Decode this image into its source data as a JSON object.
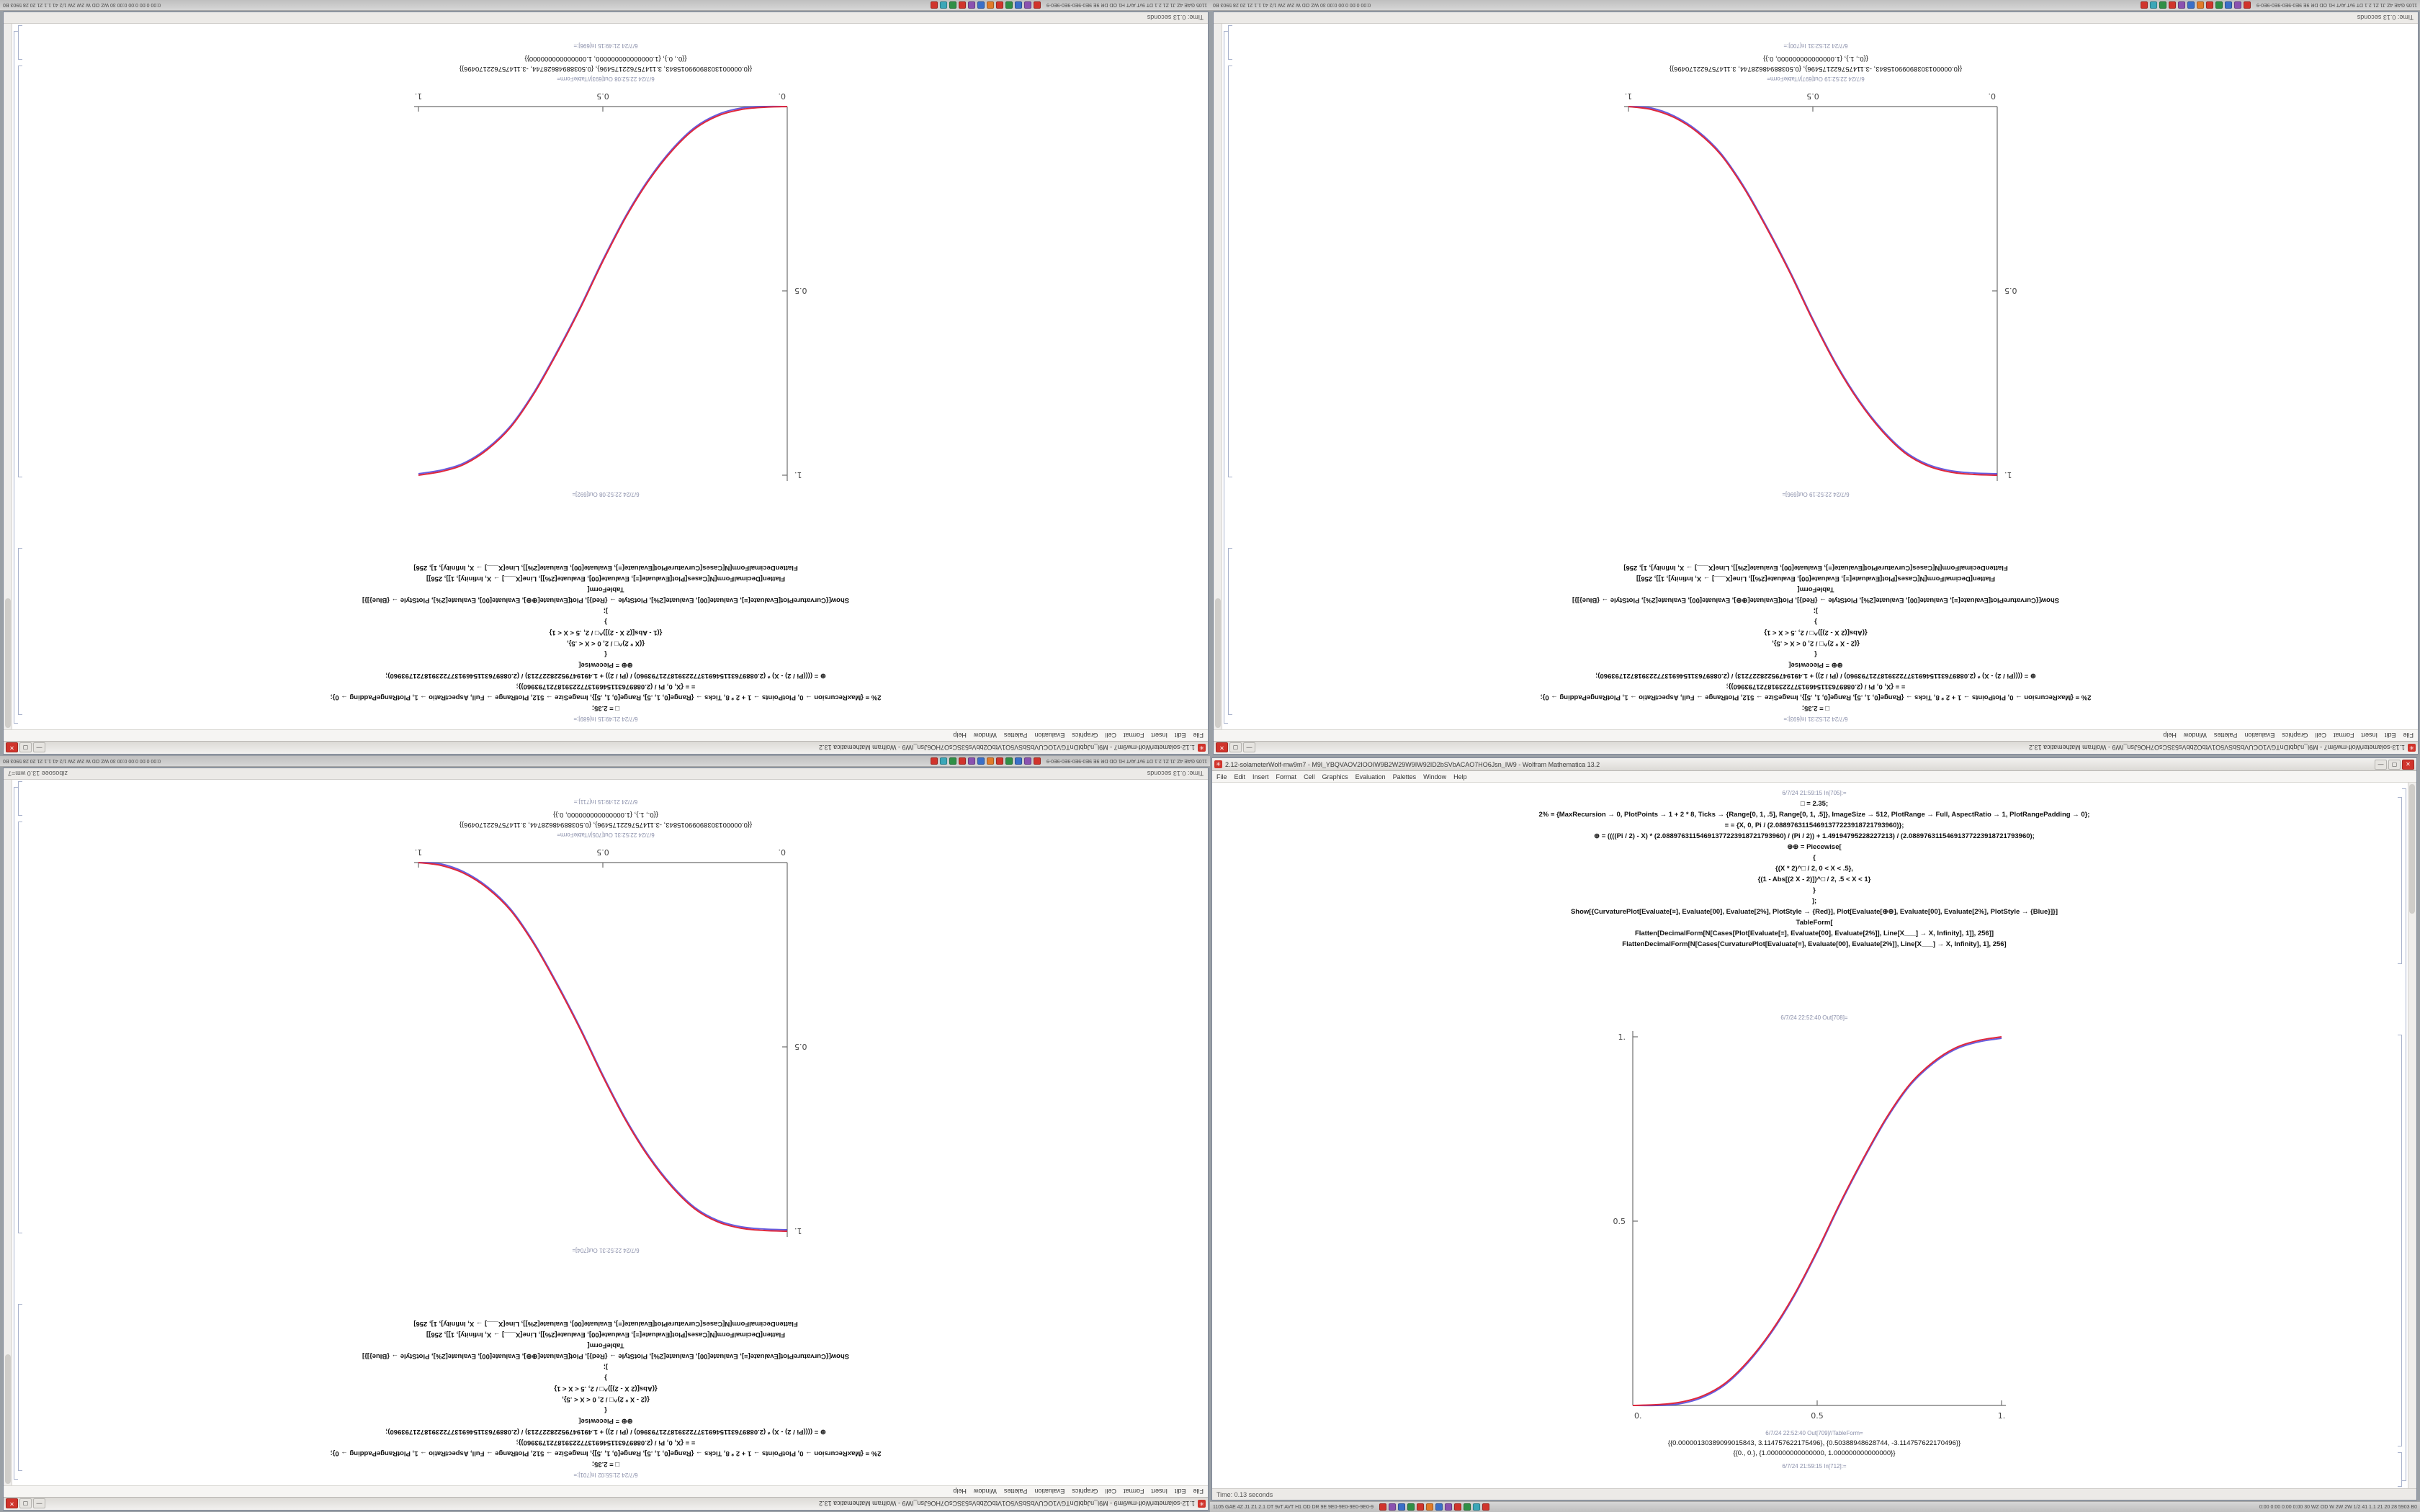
{
  "ui": {
    "menu": [
      "File",
      "Edit",
      "Insert",
      "Format",
      "Cell",
      "Graphics",
      "Evaluation",
      "Palettes",
      "Window",
      "Help"
    ],
    "window_buttons": {
      "minimize": "—",
      "maximize": "▢",
      "close": "✕"
    },
    "app_icon_glyph": "✳",
    "taskbar": {
      "left_text": "1105 GAE 4Z J1 Z1 2.1 DT 9vT AVT H1 OD DR 9E 9E0-9E0-9E0-9E0-9",
      "tray_text": "0:00 0:00 0:00 0:00  30 WZ OD W 2W 2W 1/2 41 1.1 21 20 28 5903 B0",
      "icons": [
        {
          "name": "mathematica-icon",
          "color": "#d0342c"
        },
        {
          "name": "app-icon-purple",
          "color": "#8a52b0"
        },
        {
          "name": "browser-icon",
          "color": "#3a6fc8"
        },
        {
          "name": "files-icon",
          "color": "#2f8f46"
        },
        {
          "name": "mathematica-icon",
          "color": "#d0342c"
        },
        {
          "name": "app-icon-orange",
          "color": "#e07b2a"
        },
        {
          "name": "browser-icon",
          "color": "#3a6fc8"
        },
        {
          "name": "app-icon-purple",
          "color": "#8a52b0"
        },
        {
          "name": "mathematica-icon",
          "color": "#d0342c"
        },
        {
          "name": "files-icon",
          "color": "#2f8f46"
        },
        {
          "name": "app-icon-teal",
          "color": "#3ba7b8"
        },
        {
          "name": "mathematica-icon",
          "color": "#d0342c"
        }
      ]
    },
    "colors": {
      "curve_red": "#e0283c",
      "curve_blue": "#4034d8",
      "close_red": "#d0342c"
    }
  },
  "windows": [
    {
      "rotated": true,
      "title": "1.12-solameterWolf-mw9m7 - M9l_nJqbIDnTGV1OCUVbSbSV5O1VtbO2bbVs53SCsO7HO6Jsn_IW9 - Wolfram Mathematica 13.2",
      "in_label_top": "6/7/24 21:49:15 In[689]:=",
      "code_lines": [
        "□ = 2.35;",
        "2% = {MaxRecursion → 0, PlotPoints → 1 + 2 * 8, Ticks → {Range[0, 1, .5], Range[0, 1, .5]}, ImageSize → 512, PlotRange → Full, AspectRatio → 1, PlotRangePadding → 0};",
        "≡ = {X, 0, Pi / (2.08897631154691377223918721793960)};",
        "⊕ = ((((Pi / 2) - X) * (2.08897631154691377223918721793960) / (Pi / 2)) + 1.49194795228227213) / (2.08897631154691377223918721793960);",
        "⊕⊕ = Piecewise[",
        "{",
        "{(X * 2)^□ / 2, 0 < X < .5},",
        "{(1 - Abs[(2 X - 2)])^□ / 2, .5 < X < 1}",
        "}",
        "];",
        "Show[{CurvaturePlot[Evaluate[≡], Evaluate[00], Evaluate[2%], PlotStyle → {Red}], Plot[Evaluate[⊕⊕], Evaluate[00], Evaluate[2%], PlotStyle → {Blue}]}]",
        "TableForm[",
        "Flatten[DecimalForm[N[Cases[Plot[Evaluate[≡], Evaluate[00], Evaluate[2%]], Line[X___] → X, Infinity], 1]], 256]]",
        "FlattenDecimalForm[N[Cases[CurvaturePlot[Evaluate[≡], Evaluate[00], Evaluate[2%]], Line[X___] → X, Infinity], 1], 256]"
      ],
      "out_label_plot": "6/7/24 22:52:08 Out[692]=",
      "out_label_table": "6/7/24 22:52:08 Out[693]//TableForm=",
      "result_lines": [
        "{{0.00000130389099015843, 3.114757622175496}, {0.50388948628744, -3.114757622170496}}",
        "{{0., 0.}, {1.000000000000000, 1.000000000000000}}"
      ],
      "in_label_bottom": "6/7/24 21:49:15 In[696]:=",
      "status_left": "Time: 0.13 seconds",
      "status_right": "",
      "plot": {
        "xticks": [
          "0.",
          "0.5",
          "1."
        ],
        "yticks": [
          "0.5",
          "1."
        ],
        "points": [
          [
            0,
            0
          ],
          [
            0.0625,
            0.002
          ],
          [
            0.125,
            0.008
          ],
          [
            0.1875,
            0.025
          ],
          [
            0.25,
            0.06
          ],
          [
            0.3125,
            0.12
          ],
          [
            0.375,
            0.2
          ],
          [
            0.4375,
            0.3
          ],
          [
            0.5,
            0.42
          ],
          [
            0.5625,
            0.55
          ],
          [
            0.625,
            0.67
          ],
          [
            0.6875,
            0.78
          ],
          [
            0.75,
            0.87
          ],
          [
            0.8125,
            0.93
          ],
          [
            0.875,
            0.97
          ],
          [
            0.9375,
            0.99
          ],
          [
            1,
            1
          ]
        ]
      }
    },
    {
      "rotated": true,
      "title": "1.13-solameterWolf-mw9m7 - M9l_nJqbIDnTGV1OCUVbSbSV5O1VtbO2bbVs53SCsO7HO6Jsn_IW9 - Wolfram Mathematica 13.2",
      "in_label_top": "6/7/24 21:52:31 In[693]:=",
      "code_lines": [
        "□ = 2.35;",
        "2% = {MaxRecursion → 0, PlotPoints → 1 + 2 * 8, Ticks → {Range[0, 1, .5], Range[0, 1, .5]}, ImageSize → 512, PlotRange → Full, AspectRatio → 1, PlotRangePadding → 0};",
        "≡ = {X, 0, Pi / (2.08897631154691377223918721793960)};",
        "⊕ = ((((Pi / 2) - X) * (2.08897631154691377223918721793960) / (Pi / 2)) + 1.49194795228227213) / (2.08897631154691377223918721793960);",
        "⊕⊕ = Piecewise[",
        "{",
        "{(2 - X * 2)^□ / 2, 0 < X < .5},",
        "{(Abs[(2 X - 2)])^□ / 2, .5 < X < 1}",
        "}",
        "];",
        "Show[{CurvaturePlot[Evaluate[≡], Evaluate[00], Evaluate[2%], PlotStyle → {Red}], Plot[Evaluate[⊕⊕], Evaluate[00], Evaluate[2%], PlotStyle → {Blue}]}]",
        "TableForm[",
        "Flatten[DecimalForm[N[Cases[Plot[Evaluate[≡], Evaluate[00], Evaluate[2%]], Line[X___] → X, Infinity], 1]], 256]]",
        "FlattenDecimalForm[N[Cases[CurvaturePlot[Evaluate[≡], Evaluate[00], Evaluate[2%]], Line[X___] → X, Infinity], 1], 256]"
      ],
      "out_label_plot": "6/7/24 22:52:19 Out[696]=",
      "out_label_table": "6/7/24 22:52:19 Out[697]//TableForm=",
      "result_lines": [
        "{{0.00000130389099015843, -3.114757622175496}, {0.50388948628744, 3.114757622170496}}",
        "{{0., 1.}, {1.000000000000000, 0.}}"
      ],
      "in_label_bottom": "6/7/24 21:52:31 In[700]:=",
      "status_left": "Time: 0.13 seconds",
      "status_right": "",
      "plot": {
        "xticks": [
          "0.",
          "0.5",
          "1."
        ],
        "yticks": [
          "0.5",
          "1."
        ],
        "points": [
          [
            0,
            1
          ],
          [
            0.0625,
            0.998
          ],
          [
            0.125,
            0.992
          ],
          [
            0.1875,
            0.975
          ],
          [
            0.25,
            0.94
          ],
          [
            0.3125,
            0.88
          ],
          [
            0.375,
            0.8
          ],
          [
            0.4375,
            0.7
          ],
          [
            0.5,
            0.58
          ],
          [
            0.5625,
            0.45
          ],
          [
            0.625,
            0.33
          ],
          [
            0.6875,
            0.22
          ],
          [
            0.75,
            0.13
          ],
          [
            0.8125,
            0.07
          ],
          [
            0.875,
            0.03
          ],
          [
            0.9375,
            0.008
          ],
          [
            1,
            0
          ]
        ]
      }
    },
    {
      "rotated": true,
      "title": "1.12-solameterWolf-mw9m9 - M9l_nJqbIDnTGV1OCUVbSbSV5O1VtbO2bbVs53SCsO7HO6Jsn_IW9 - Wolfram Mathematica 13.2",
      "in_label_top": "6/7/24 21:55:02 In[701]:=",
      "code_lines": [
        "□ = 2.35;",
        "2% = {MaxRecursion → 0, PlotPoints → 1 + 2 * 8, Ticks → {Range[0, 1, .5], Range[0, 1, .5]}, ImageSize → 512, PlotRange → Full, AspectRatio → 1, PlotRangePadding → 0};",
        "≡ = {X, 0, Pi / (2.08897631154691377223918721793960)};",
        "⊕ = ((((Pi / 2) - X) * (2.08897631154691377223918721793960) / (Pi / 2)) + 1.49194795228227213) / (2.08897631154691377223918721793960);",
        "⊕⊕ = Piecewise[",
        "{",
        "{(2 - X * 2)^□ / 2, 0 < X < .5},",
        "{(Abs[(2 X - 2)])^□ / 2, .5 < X < 1}",
        "}",
        "];",
        "Show[{CurvaturePlot[Evaluate[≡], Evaluate[00], Evaluate[2%], PlotStyle → {Red}], Plot[Evaluate[⊕⊕], Evaluate[00], Evaluate[2%], PlotStyle → {Blue}]}]",
        "TableForm[",
        "Flatten[DecimalForm[N[Cases[Plot[Evaluate[≡], Evaluate[00], Evaluate[2%]], Line[X___] → X, Infinity], 1]], 256]]",
        "FlattenDecimalForm[N[Cases[CurvaturePlot[Evaluate[≡], Evaluate[00], Evaluate[2%]], Line[X___] → X, Infinity], 1], 256]"
      ],
      "out_label_plot": "6/7/24 22:52:31 Out[704]=",
      "out_label_table": "6/7/24 22:52:31 Out[705]//TableForm=",
      "result_lines": [
        "{{0.00000130389099015843, -3.114757622175496}, {0.50388948628744, 3.114757622170496}}",
        "{{0., 1.}, {1.000000000000000, 0.}}"
      ],
      "in_label_bottom": "6/7/24 21:49:15 In[711]:=",
      "status_left": "Time: 0.13 seconds",
      "status_right": "zibosoee 13.0 wm=7",
      "plot": {
        "xticks": [
          "0.",
          "0.5",
          "1."
        ],
        "yticks": [
          "0.5",
          "1."
        ],
        "points": [
          [
            0,
            1
          ],
          [
            0.0625,
            0.998
          ],
          [
            0.125,
            0.992
          ],
          [
            0.1875,
            0.975
          ],
          [
            0.25,
            0.94
          ],
          [
            0.3125,
            0.88
          ],
          [
            0.375,
            0.8
          ],
          [
            0.4375,
            0.7
          ],
          [
            0.5,
            0.58
          ],
          [
            0.5625,
            0.45
          ],
          [
            0.625,
            0.33
          ],
          [
            0.6875,
            0.22
          ],
          [
            0.75,
            0.13
          ],
          [
            0.8125,
            0.07
          ],
          [
            0.875,
            0.03
          ],
          [
            0.9375,
            0.008
          ],
          [
            1,
            0
          ]
        ]
      }
    },
    {
      "rotated": false,
      "title": "2.12-solameterWolf-mw9m7 - M9l_YBQVAOV2IOOIW9B2W29W9IW92ID2bSVbACAO7HO6Jsn_IW9 - Wolfram Mathematica 13.2",
      "in_label_top": "6/7/24 21:59:15 In[705]:=",
      "code_lines": [
        "□ = 2.35;",
        "2% = {MaxRecursion → 0, PlotPoints → 1 + 2 * 8, Ticks → {Range[0, 1, .5], Range[0, 1, .5]}, ImageSize → 512, PlotRange → Full, AspectRatio → 1, PlotRangePadding → 0};",
        "≡ = {X, 0, Pi / (2.08897631154691377223918721793960)};",
        "⊕ = ((((Pi / 2) - X) * (2.08897631154691377223918721793960) / (Pi / 2)) + 1.49194795228227213) / (2.08897631154691377223918721793960);",
        "⊕⊕ = Piecewise[",
        "{",
        "{(X * 2)^□ / 2, 0 < X < .5},",
        "{(1 - Abs[(2 X - 2)])^□ / 2, .5 < X < 1}",
        "}",
        "];",
        "Show[{CurvaturePlot[Evaluate[≡], Evaluate[00], Evaluate[2%], PlotStyle → {Red}], Plot[Evaluate[⊕⊕], Evaluate[00], Evaluate[2%], PlotStyle → {Blue}]}]",
        "TableForm[",
        "Flatten[DecimalForm[N[Cases[Plot[Evaluate[≡], Evaluate[00], Evaluate[2%]], Line[X___] → X, Infinity], 1]], 256]]",
        "FlattenDecimalForm[N[Cases[CurvaturePlot[Evaluate[≡], Evaluate[00], Evaluate[2%]], Line[X___] → X, Infinity], 1], 256]"
      ],
      "out_label_plot": "6/7/24 22:52:40 Out[708]=",
      "out_label_table": "6/7/24 22:52:40 Out[709]//TableForm=",
      "result_lines": [
        "{{0.00000130389099015843, 3.114757622175496}, {0.50388948628744, -3.114757622170496}}",
        "{{0., 0.}, {1.000000000000000, 1.000000000000000}}"
      ],
      "in_label_bottom": "6/7/24 21:59:15 In[712]:=",
      "status_left": "Time: 0.13 seconds",
      "status_right": "",
      "plot": {
        "xticks": [
          "0.",
          "0.5",
          "1."
        ],
        "yticks": [
          "0.5",
          "1."
        ],
        "points": [
          [
            0,
            0
          ],
          [
            0.0625,
            0.002
          ],
          [
            0.125,
            0.008
          ],
          [
            0.1875,
            0.025
          ],
          [
            0.25,
            0.06
          ],
          [
            0.3125,
            0.12
          ],
          [
            0.375,
            0.2
          ],
          [
            0.4375,
            0.3
          ],
          [
            0.5,
            0.42
          ],
          [
            0.5625,
            0.55
          ],
          [
            0.625,
            0.67
          ],
          [
            0.6875,
            0.78
          ],
          [
            0.75,
            0.87
          ],
          [
            0.8125,
            0.93
          ],
          [
            0.875,
            0.97
          ],
          [
            0.9375,
            0.99
          ],
          [
            1,
            1
          ]
        ]
      }
    }
  ]
}
